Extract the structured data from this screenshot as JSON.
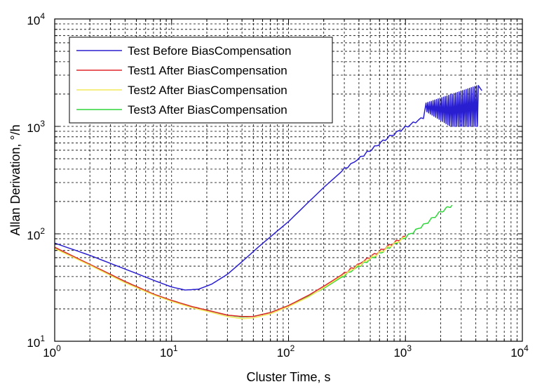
{
  "chart_data": {
    "type": "line",
    "xlabel": "Cluster Time, s",
    "ylabel": "Allan Derivation, °/h",
    "xscale": "log",
    "yscale": "log",
    "xlim": [
      1,
      10000
    ],
    "ylim": [
      10,
      10000
    ],
    "grid": true,
    "legend_position": "top-left",
    "x_ticks": [
      {
        "base": "10",
        "exp": "0"
      },
      {
        "base": "10",
        "exp": "1"
      },
      {
        "base": "10",
        "exp": "2"
      },
      {
        "base": "10",
        "exp": "3"
      },
      {
        "base": "10",
        "exp": "4"
      }
    ],
    "y_ticks": [
      {
        "base": "10",
        "exp": "1"
      },
      {
        "base": "10",
        "exp": "2"
      },
      {
        "base": "10",
        "exp": "3"
      },
      {
        "base": "10",
        "exp": "4"
      }
    ],
    "series": [
      {
        "name": "Test Before BiasCompensation",
        "color": "#2a1fd0",
        "x": [
          1,
          2,
          4,
          7,
          10,
          13,
          17,
          22,
          30,
          40,
          55,
          75,
          100,
          150,
          200,
          300,
          500,
          700,
          1000,
          1500,
          2000,
          2500,
          3000,
          3500,
          4000,
          4500
        ],
        "y": [
          82,
          63,
          47,
          37,
          32,
          30,
          30.5,
          34,
          42,
          55,
          75,
          100,
          130,
          200,
          270,
          400,
          600,
          780,
          980,
          1250,
          1450,
          1600,
          1700,
          1750,
          1800,
          2150
        ],
        "oscillation": {
          "x_start": 1500,
          "x_end": 4200,
          "y_low": 1000,
          "y_high": 2400
        }
      },
      {
        "name": "Test1 After BiasCompensation",
        "color": "#e0262b",
        "x": [
          1,
          2,
          4,
          7,
          10,
          15,
          20,
          30,
          40,
          50,
          70,
          100,
          150,
          200,
          300,
          500,
          700,
          1000
        ],
        "y": [
          75,
          52,
          36,
          27.5,
          24,
          21,
          19.5,
          17.5,
          17,
          17,
          18.5,
          21.5,
          27,
          32.5,
          43,
          61,
          76,
          95
        ]
      },
      {
        "name": "Test2 After BiasCompensation",
        "color": "#f2e85a",
        "x": [
          1,
          2,
          4,
          7,
          10,
          15,
          20,
          30,
          40,
          50,
          70,
          100,
          150,
          200,
          300,
          500,
          700,
          1000
        ],
        "y": [
          73,
          51,
          35,
          27,
          23.5,
          20.5,
          19,
          17,
          16.2,
          16.5,
          18,
          21,
          26,
          31.5,
          42,
          59,
          74,
          93
        ]
      },
      {
        "name": "Test3 After BiasCompensation",
        "color": "#2fd63a",
        "x": [
          1,
          2,
          4,
          7,
          10,
          15,
          20,
          30,
          40,
          50,
          70,
          100,
          150,
          200,
          300,
          500,
          700,
          1000,
          1500,
          2000,
          2500
        ],
        "y": [
          74,
          52,
          36,
          27.5,
          24,
          21,
          19.5,
          17.5,
          16.8,
          17,
          18.5,
          21.5,
          26.5,
          31,
          41,
          58,
          73,
          93,
          125,
          160,
          185
        ]
      }
    ]
  }
}
